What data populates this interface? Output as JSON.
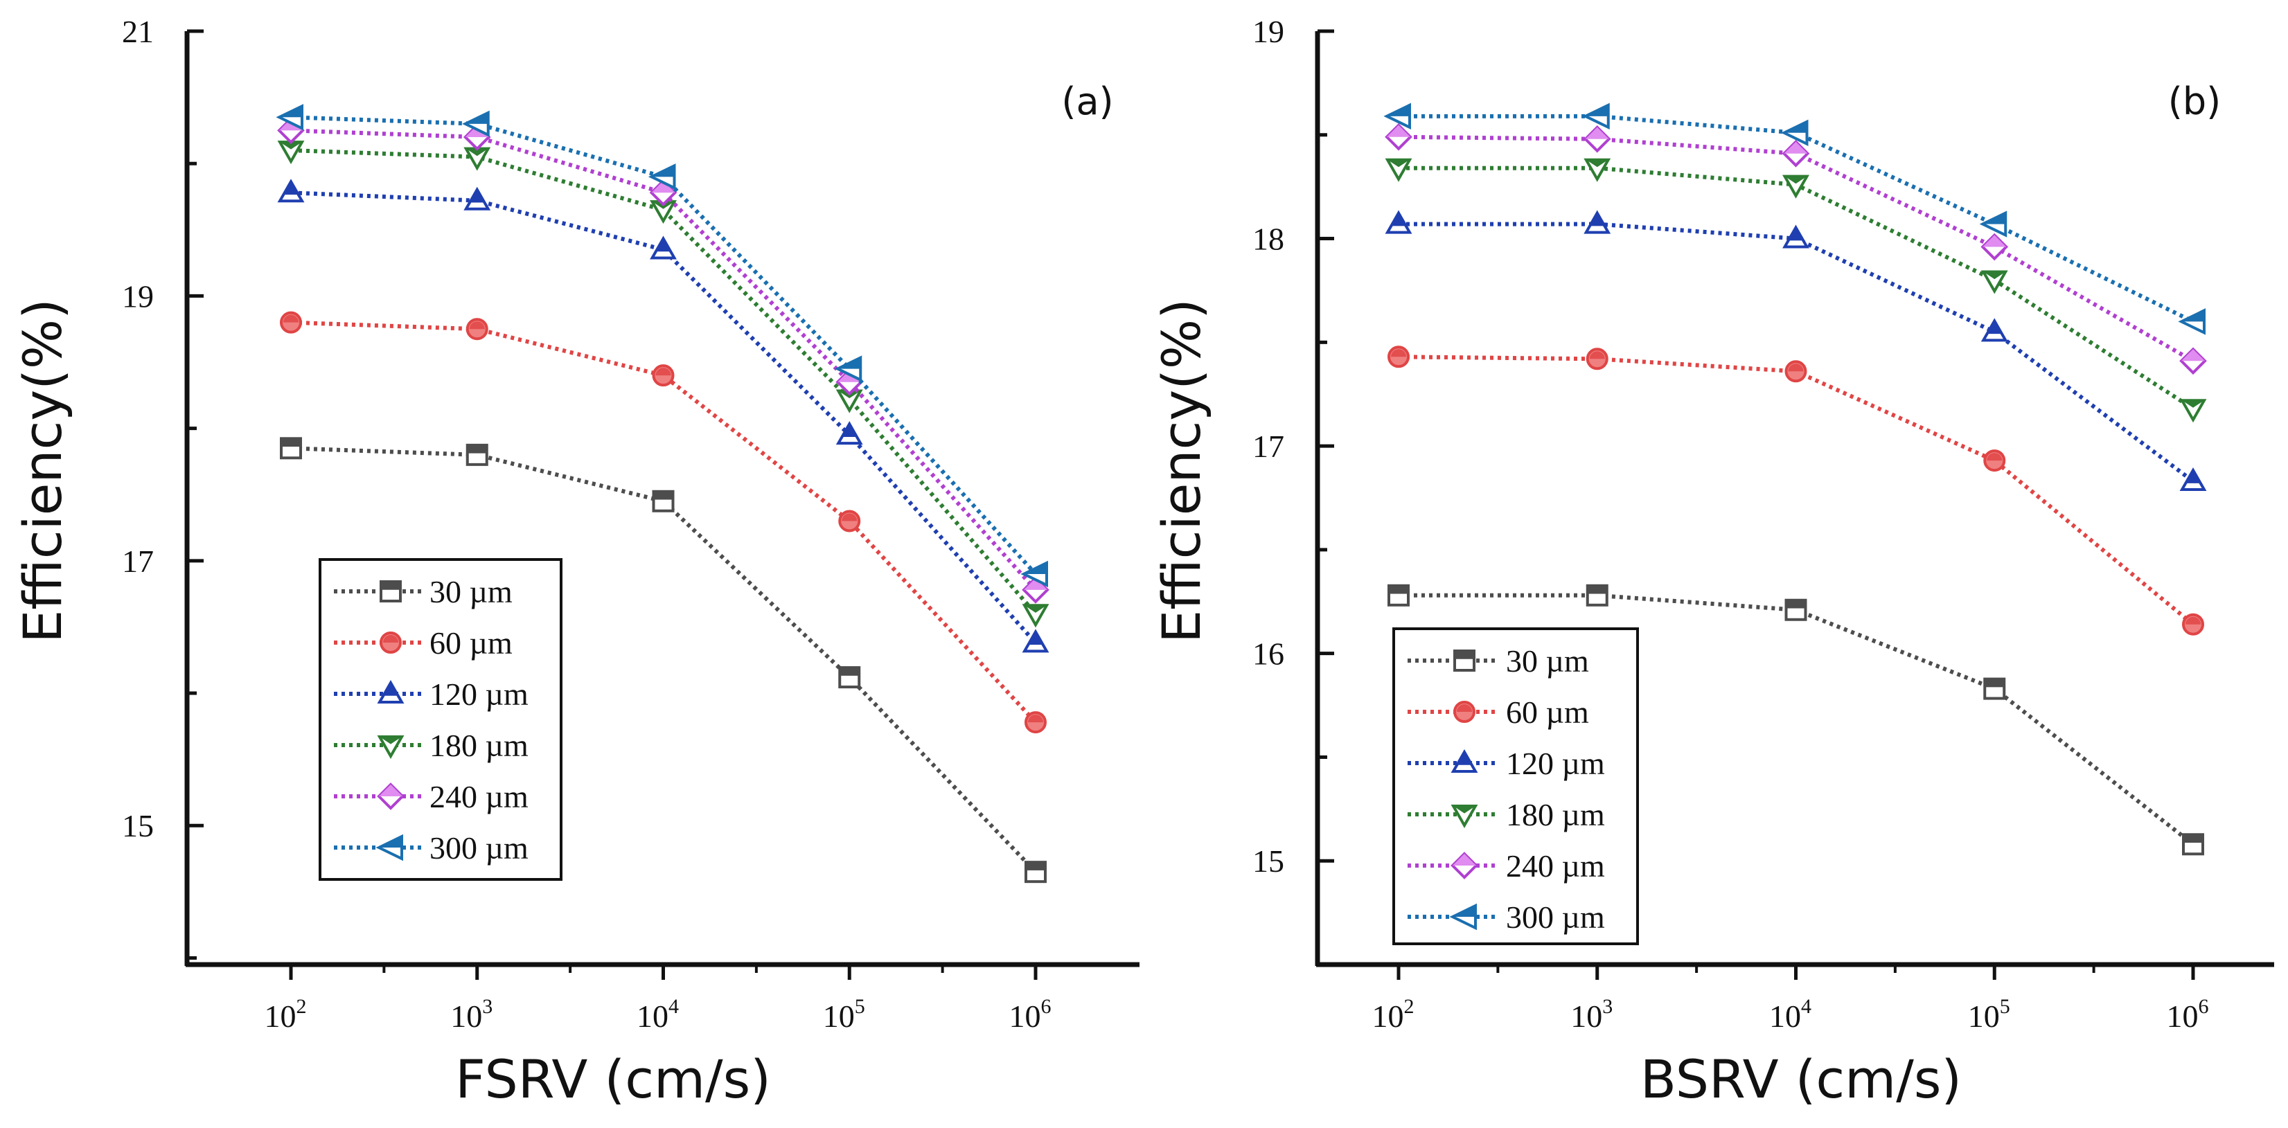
{
  "chart_data": [
    {
      "type": "line",
      "panel_label": "(a)",
      "xlabel": "FSRV (cm/s)",
      "ylabel": "Efficiency(%)",
      "x_scale": "log",
      "x": [
        100,
        1000,
        10000,
        100000,
        1000000
      ],
      "x_tick_labels": [
        {
          "base": "10",
          "exp": "2"
        },
        {
          "base": "10",
          "exp": "3"
        },
        {
          "base": "10",
          "exp": "4"
        },
        {
          "base": "10",
          "exp": "5"
        },
        {
          "base": "10",
          "exp": "6"
        }
      ],
      "ylim": [
        13.95,
        21.0
      ],
      "y_ticks_major": [
        15,
        17,
        19,
        21
      ],
      "y_ticks_minor": [
        14,
        16,
        18,
        20
      ],
      "y_tick_labels": [
        "15",
        "17",
        "19",
        "21"
      ],
      "legend_position": "lower-left",
      "series": [
        {
          "name": "30 µm",
          "marker": "square",
          "color": "#4d4d4d",
          "fill": "#ffffff",
          "values": [
            17.85,
            17.8,
            17.45,
            16.12,
            14.65
          ]
        },
        {
          "name": "60 µm",
          "marker": "circle",
          "color": "#e04545",
          "fill": "#f08080",
          "values": [
            18.8,
            18.75,
            18.4,
            17.3,
            15.78
          ]
        },
        {
          "name": "120 µm",
          "marker": "triangle-up",
          "color": "#1f3fb0",
          "fill": "#1f3fb0",
          "values": [
            19.78,
            19.72,
            19.35,
            17.95,
            16.38
          ]
        },
        {
          "name": "180 µm",
          "marker": "triangle-down",
          "color": "#2e7d32",
          "fill": "#2e7d32",
          "values": [
            20.1,
            20.05,
            19.65,
            18.22,
            16.6
          ]
        },
        {
          "name": "240 µm",
          "marker": "diamond",
          "color": "#b040d0",
          "fill": "#e08cf0",
          "values": [
            20.25,
            20.2,
            19.78,
            18.35,
            16.78
          ]
        },
        {
          "name": "300 µm",
          "marker": "triangle-left",
          "color": "#1a6fb0",
          "fill": "#1a6fb0",
          "values": [
            20.35,
            20.3,
            19.9,
            18.45,
            16.9
          ]
        }
      ]
    },
    {
      "type": "line",
      "panel_label": "(b)",
      "xlabel": "BSRV (cm/s)",
      "ylabel": "Efficiency(%)",
      "x_scale": "log",
      "x": [
        100,
        1000,
        10000,
        100000,
        1000000
      ],
      "x_tick_labels": [
        {
          "base": "10",
          "exp": "2"
        },
        {
          "base": "10",
          "exp": "3"
        },
        {
          "base": "10",
          "exp": "4"
        },
        {
          "base": "10",
          "exp": "5"
        },
        {
          "base": "10",
          "exp": "6"
        }
      ],
      "ylim": [
        14.5,
        19.0
      ],
      "y_ticks_major": [
        15,
        16,
        17,
        18,
        19
      ],
      "y_ticks_minor": [
        14.5,
        15.5,
        16.5,
        17.5,
        18.5
      ],
      "y_tick_labels": [
        "15",
        "16",
        "17",
        "18",
        "19"
      ],
      "legend_position": "lower-left",
      "series": [
        {
          "name": "30 µm",
          "marker": "square",
          "color": "#4d4d4d",
          "fill": "#ffffff",
          "values": [
            16.28,
            16.28,
            16.21,
            15.83,
            15.08
          ]
        },
        {
          "name": "60 µm",
          "marker": "circle",
          "color": "#e04545",
          "fill": "#f08080",
          "values": [
            17.43,
            17.42,
            17.36,
            16.93,
            16.14
          ]
        },
        {
          "name": "120 µm",
          "marker": "triangle-up",
          "color": "#1f3fb0",
          "fill": "#1f3fb0",
          "values": [
            18.07,
            18.07,
            18.0,
            17.55,
            16.83
          ]
        },
        {
          "name": "180 µm",
          "marker": "triangle-down",
          "color": "#2e7d32",
          "fill": "#2e7d32",
          "values": [
            18.34,
            18.34,
            18.26,
            17.8,
            17.18
          ]
        },
        {
          "name": "240 µm",
          "marker": "diamond",
          "color": "#b040d0",
          "fill": "#e08cf0",
          "values": [
            18.49,
            18.48,
            18.41,
            17.96,
            17.41
          ]
        },
        {
          "name": "300 µm",
          "marker": "triangle-left",
          "color": "#1a6fb0",
          "fill": "#1a6fb0",
          "values": [
            18.59,
            18.59,
            18.51,
            18.07,
            17.6
          ]
        }
      ]
    }
  ]
}
